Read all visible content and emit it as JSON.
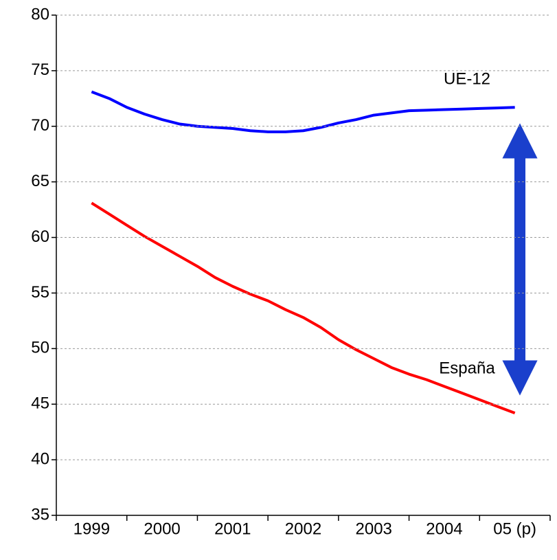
{
  "chart_data": {
    "type": "line",
    "x": [
      1999,
      1999.25,
      1999.5,
      1999.75,
      2000,
      2000.25,
      2000.5,
      2000.75,
      2001,
      2001.25,
      2001.5,
      2001.75,
      2002,
      2002.25,
      2002.5,
      2002.75,
      2003,
      2003.25,
      2003.5,
      2003.75,
      2004,
      2004.25,
      2004.5,
      2004.75,
      2005
    ],
    "series": [
      {
        "name": "UE-12",
        "color": "#0000ff",
        "values": [
          73.1,
          72.5,
          71.7,
          71.1,
          70.6,
          70.2,
          70.0,
          69.9,
          69.8,
          69.6,
          69.5,
          69.5,
          69.6,
          69.9,
          70.3,
          70.6,
          71.0,
          71.2,
          71.4,
          71.45,
          71.5,
          71.55,
          71.6,
          71.65,
          71.7
        ]
      },
      {
        "name": "España",
        "color": "#ff0000",
        "values": [
          63.1,
          62.1,
          61.1,
          60.1,
          59.2,
          58.3,
          57.4,
          56.4,
          55.6,
          54.9,
          54.3,
          53.5,
          52.8,
          51.9,
          50.8,
          49.9,
          49.1,
          48.3,
          47.7,
          47.2,
          46.6,
          46.0,
          45.4,
          44.8,
          44.2
        ]
      }
    ],
    "xlim": [
      1998.5,
      2005.5
    ],
    "xticks": [
      {
        "value": 1999,
        "label": "1999"
      },
      {
        "value": 2000,
        "label": "2000"
      },
      {
        "value": 2001,
        "label": "2001"
      },
      {
        "value": 2002,
        "label": "2002"
      },
      {
        "value": 2003,
        "label": "2003"
      },
      {
        "value": 2004,
        "label": "2004"
      },
      {
        "value": 2005,
        "label": "05 (p)"
      }
    ],
    "ylim": [
      35,
      80
    ],
    "yticks": [
      35,
      40,
      45,
      50,
      55,
      60,
      65,
      70,
      75,
      80
    ],
    "grid": true
  }
}
